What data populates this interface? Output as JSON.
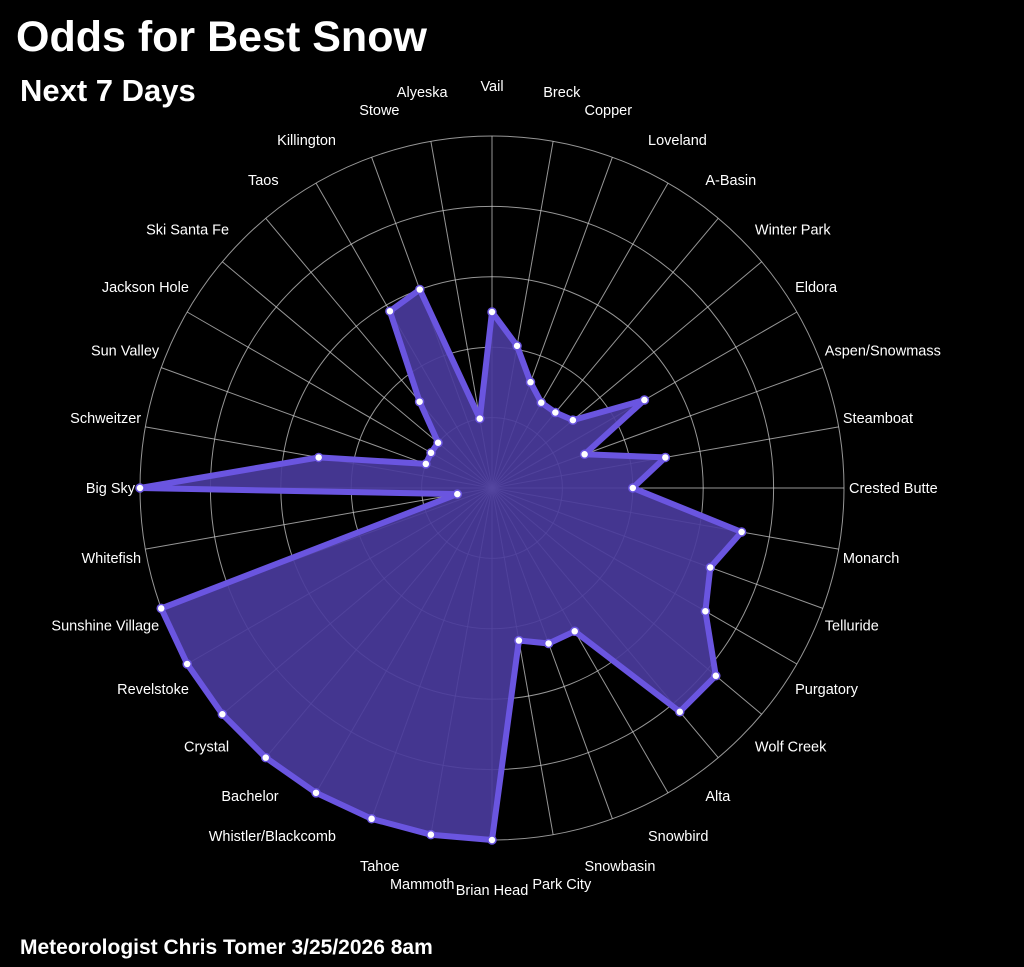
{
  "header": {
    "title": "Odds for Best Snow",
    "subtitle": "Next 7 Days"
  },
  "footer": {
    "credit": "Meteorologist Chris Tomer  3/25/2026 8am"
  },
  "colors": {
    "background": "#000000",
    "fill": "#4a3b9c",
    "stroke": "#6a55e0",
    "grid": "#c8c8c8",
    "marker": "#ffffff"
  },
  "chart_data": {
    "type": "radar",
    "title": "Odds for Best Snow",
    "subtitle": "Next 7 Days",
    "r_range": [
      0,
      100
    ],
    "grid": true,
    "legend": "none",
    "categories": [
      "Vail",
      "Breck",
      "Copper",
      "Loveland",
      "A-Basin",
      "Winter Park",
      "Eldora",
      "Aspen/Snowmass",
      "Steamboat",
      "Crested Butte",
      "Monarch",
      "Telluride",
      "Purgatory",
      "Wolf Creek",
      "Alta",
      "Snowbird",
      "Snowbasin",
      "Park City",
      "Brian Head",
      "Mammoth",
      "Tahoe",
      "Whistler/Blackcomb",
      "Bachelor",
      "Crystal",
      "Revelstoke",
      "Sunshine Village",
      "Whitefish",
      "Big Sky",
      "Schweitzer",
      "Sun Valley",
      "Jackson Hole",
      "Ski Santa Fe",
      "Taos",
      "Killington",
      "Stowe",
      "Alyeska"
    ],
    "values": [
      50,
      41,
      32,
      28,
      28,
      30,
      50,
      28,
      50,
      40,
      72,
      66,
      70,
      83,
      83,
      47,
      47,
      44,
      100,
      100,
      100,
      100,
      100,
      100,
      100,
      100,
      10,
      100,
      50,
      20,
      20,
      20,
      32,
      58,
      60,
      20
    ]
  }
}
